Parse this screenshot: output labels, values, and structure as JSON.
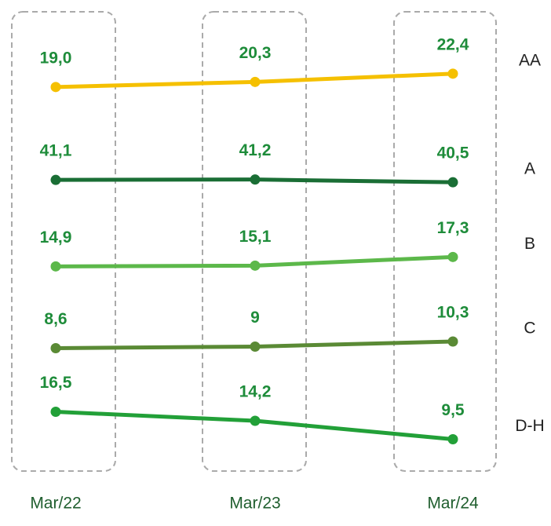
{
  "chart_data": {
    "type": "line",
    "categories": [
      "Mar/22",
      "Mar/23",
      "Mar/24"
    ],
    "series": [
      {
        "name": "AA",
        "color": "#f5c000",
        "values": [
          19.0,
          20.3,
          22.4
        ],
        "value_labels": [
          "19,0",
          "20,3",
          "22,4"
        ]
      },
      {
        "name": "A",
        "color": "#1a6e35",
        "values": [
          41.1,
          41.2,
          40.5
        ],
        "value_labels": [
          "41,1",
          "41,2",
          "40,5"
        ]
      },
      {
        "name": "B",
        "color": "#5cb84a",
        "values": [
          14.9,
          15.1,
          17.3
        ],
        "value_labels": [
          "14,9",
          "15,1",
          "17,3"
        ]
      },
      {
        "name": "C",
        "color": "#5a8a35",
        "values": [
          8.6,
          9,
          10.3
        ],
        "value_labels": [
          "8,6",
          "9",
          "10,3"
        ]
      },
      {
        "name": "D-H",
        "color": "#22a038",
        "values": [
          16.5,
          14.2,
          9.5
        ],
        "value_labels": [
          "16,5",
          "14,2",
          "9,5"
        ]
      }
    ]
  }
}
